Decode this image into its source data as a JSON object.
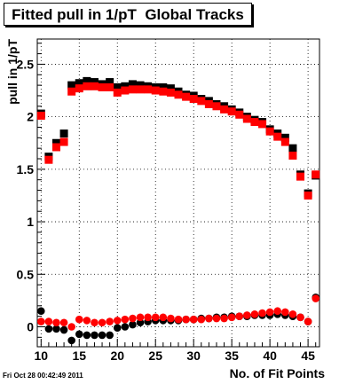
{
  "chart_data": {
    "type": "scatter",
    "title": "Fitted pull in 1/pT  Global Tracks",
    "xlabel": "No. of Fit Points",
    "ylabel": "pull in 1/pT",
    "xlim": [
      9.5,
      46.5
    ],
    "ylim": [
      -0.19,
      2.74
    ],
    "x_ticks": [
      10,
      15,
      20,
      25,
      30,
      35,
      40,
      45
    ],
    "x_tick_labels": [
      "10",
      "15",
      "20",
      "25",
      "30",
      "35",
      "40",
      "45"
    ],
    "y_ticks": [
      0,
      0.5,
      1,
      1.5,
      2,
      2.5
    ],
    "y_tick_labels": [
      "0",
      "0.5",
      "1",
      "1.5",
      "2",
      "2.5"
    ],
    "grid": true,
    "timestamp": "Fri Oct 28 00:42:49 2011",
    "x": [
      10,
      11,
      12,
      13,
      14,
      15,
      16,
      17,
      18,
      19,
      20,
      21,
      22,
      23,
      24,
      25,
      26,
      27,
      28,
      29,
      30,
      31,
      32,
      33,
      34,
      35,
      36,
      37,
      38,
      39,
      40,
      41,
      42,
      43,
      44,
      45,
      46
    ],
    "series": [
      {
        "marker": "square",
        "color": "#000000",
        "values": [
          2.03,
          1.62,
          1.75,
          1.84,
          2.3,
          2.32,
          2.34,
          2.33,
          2.31,
          2.33,
          2.28,
          2.29,
          2.31,
          2.3,
          2.29,
          2.28,
          2.28,
          2.27,
          2.24,
          2.21,
          2.2,
          2.17,
          2.15,
          2.12,
          2.1,
          2.07,
          2.04,
          2.0,
          1.97,
          1.95,
          1.88,
          1.84,
          1.8,
          1.7,
          1.45,
          1.27,
          1.44
        ]
      },
      {
        "marker": "square",
        "color": "#ff0000",
        "values": [
          2.01,
          1.59,
          1.71,
          1.76,
          2.24,
          2.27,
          2.29,
          2.29,
          2.28,
          2.28,
          2.23,
          2.25,
          2.26,
          2.26,
          2.26,
          2.25,
          2.24,
          2.23,
          2.21,
          2.19,
          2.17,
          2.15,
          2.12,
          2.1,
          2.07,
          2.05,
          2.02,
          1.98,
          1.95,
          1.93,
          1.86,
          1.81,
          1.76,
          1.63,
          1.43,
          1.25,
          1.45
        ]
      },
      {
        "marker": "circle",
        "color": "#000000",
        "values": [
          0.15,
          -0.02,
          -0.02,
          -0.03,
          -0.13,
          -0.07,
          -0.08,
          -0.08,
          -0.08,
          -0.08,
          -0.01,
          0.0,
          0.02,
          0.04,
          0.05,
          0.06,
          0.06,
          0.06,
          0.06,
          0.07,
          0.07,
          0.08,
          0.08,
          0.09,
          0.09,
          0.1,
          0.1,
          0.1,
          0.11,
          0.11,
          0.11,
          0.12,
          0.11,
          0.1,
          0.09,
          0.05,
          0.28
        ]
      },
      {
        "marker": "circle",
        "color": "#ff0000",
        "values": [
          0.05,
          0.05,
          0.04,
          0.04,
          0.0,
          0.07,
          0.06,
          0.04,
          0.04,
          0.05,
          0.06,
          0.07,
          0.08,
          0.09,
          0.09,
          0.09,
          0.09,
          0.08,
          0.07,
          0.07,
          0.07,
          0.07,
          0.08,
          0.08,
          0.08,
          0.09,
          0.1,
          0.11,
          0.12,
          0.13,
          0.14,
          0.15,
          0.14,
          0.12,
          0.09,
          0.05,
          0.27
        ]
      }
    ]
  }
}
